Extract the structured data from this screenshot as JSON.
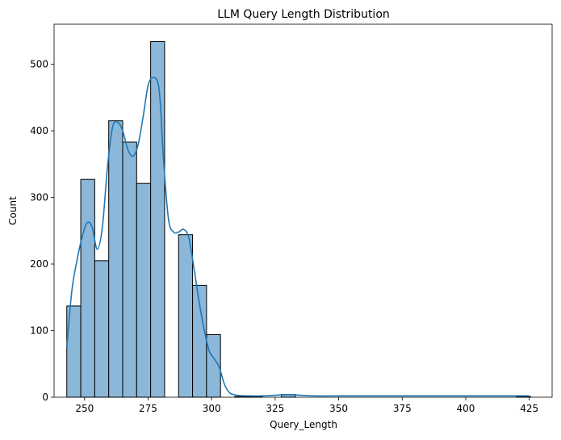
{
  "chart_data": {
    "type": "bar",
    "title": "LLM Query Length Distribution",
    "xlabel": "Query_Length",
    "ylabel": "Count",
    "xlim": [
      238,
      434
    ],
    "ylim": [
      0,
      560
    ],
    "xticks": [
      250,
      275,
      300,
      325,
      350,
      375,
      400,
      425
    ],
    "yticks": [
      0,
      100,
      200,
      300,
      400,
      500
    ],
    "grid": false,
    "bar_color": "#8bb7d9",
    "bar_edge_color": "#000000",
    "kde_color": "#1f77b4",
    "bins": [
      {
        "x0": 243.0,
        "x1": 248.5,
        "count": 137
      },
      {
        "x0": 248.5,
        "x1": 254.0,
        "count": 327
      },
      {
        "x0": 254.0,
        "x1": 259.5,
        "count": 205
      },
      {
        "x0": 259.5,
        "x1": 265.0,
        "count": 415
      },
      {
        "x0": 265.0,
        "x1": 270.5,
        "count": 383
      },
      {
        "x0": 270.5,
        "x1": 276.0,
        "count": 321
      },
      {
        "x0": 276.0,
        "x1": 281.5,
        "count": 534
      },
      {
        "x0": 281.5,
        "x1": 287.0,
        "count": 0
      },
      {
        "x0": 287.0,
        "x1": 292.5,
        "count": 244
      },
      {
        "x0": 292.5,
        "x1": 298.0,
        "count": 168
      },
      {
        "x0": 298.0,
        "x1": 303.5,
        "count": 94
      },
      {
        "x0": 309.0,
        "x1": 314.5,
        "count": 1
      },
      {
        "x0": 314.5,
        "x1": 320.0,
        "count": 1
      },
      {
        "x0": 327.5,
        "x1": 333.0,
        "count": 4
      },
      {
        "x0": 420.0,
        "x1": 425.5,
        "count": 1
      }
    ],
    "kde": {
      "x": [
        243,
        245,
        247,
        249,
        251,
        253,
        255,
        257,
        259,
        261,
        263,
        265,
        267,
        269,
        271,
        273,
        275,
        277,
        279,
        280,
        281,
        283,
        285,
        287,
        289,
        291,
        293,
        295,
        297,
        299,
        301,
        303,
        305,
        307,
        310,
        315,
        320,
        325,
        330,
        335,
        340,
        350,
        360,
        375,
        400,
        425
      ],
      "y": [
        75,
        160,
        205,
        240,
        262,
        255,
        222,
        255,
        345,
        405,
        413,
        400,
        372,
        362,
        378,
        420,
        468,
        480,
        470,
        430,
        360,
        268,
        248,
        248,
        252,
        240,
        195,
        145,
        103,
        70,
        58,
        45,
        20,
        7,
        3,
        2,
        2,
        3,
        4,
        3,
        2,
        2,
        2,
        2,
        2,
        2
      ]
    }
  }
}
